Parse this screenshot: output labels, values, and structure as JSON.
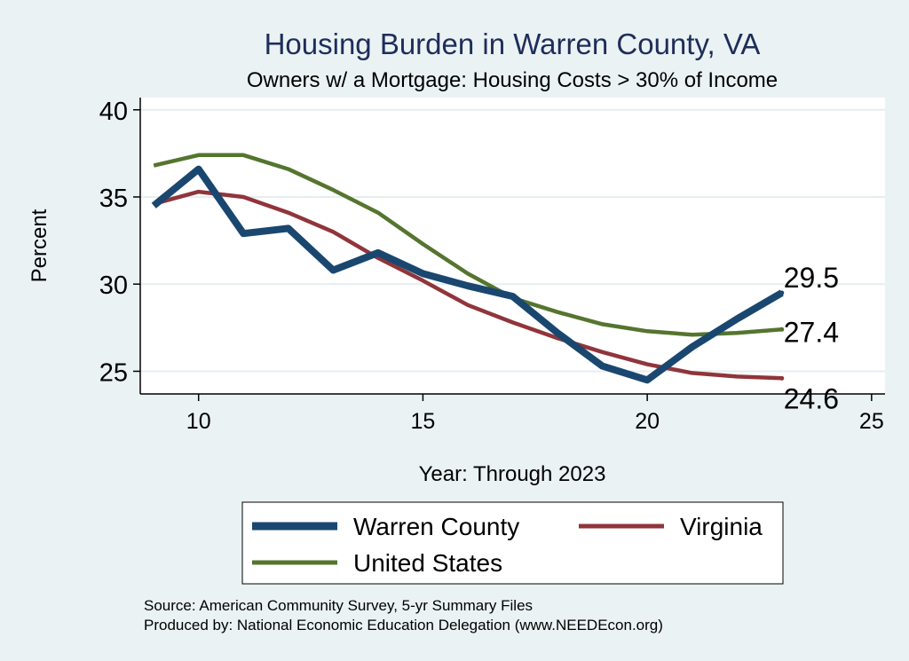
{
  "chart_data": {
    "type": "line",
    "title": "Housing Burden in Warren County, VA",
    "subtitle": "Owners w/ a Mortgage: Housing Costs > 30% of Income",
    "xlabel": "Year: Through 2023",
    "ylabel": "Percent",
    "xlim": [
      8.7,
      25.3
    ],
    "ylim": [
      23.7,
      40.7
    ],
    "xticks": [
      10,
      15,
      20,
      25
    ],
    "yticks": [
      25,
      30,
      35,
      40
    ],
    "x": [
      9,
      10,
      11,
      12,
      13,
      14,
      15,
      16,
      17,
      18,
      19,
      20,
      21,
      22,
      23
    ],
    "series": [
      {
        "name": "Warren County",
        "color": "#1a476f",
        "values": [
          34.5,
          36.6,
          32.9,
          33.2,
          30.8,
          31.8,
          30.6,
          29.9,
          29.3,
          27.2,
          25.3,
          24.5,
          26.4,
          28.0,
          29.5
        ],
        "end_label": "29.5"
      },
      {
        "name": "Virginia",
        "color": "#90353b",
        "values": [
          34.6,
          35.3,
          35.0,
          34.1,
          33.0,
          31.5,
          30.2,
          28.8,
          27.8,
          26.9,
          26.1,
          25.4,
          24.9,
          24.7,
          24.6
        ],
        "end_label": "24.6"
      },
      {
        "name": "United States",
        "color": "#55752f",
        "values": [
          36.8,
          37.4,
          37.4,
          36.6,
          35.4,
          34.1,
          32.3,
          30.6,
          29.2,
          28.4,
          27.7,
          27.3,
          27.1,
          27.2,
          27.4
        ],
        "end_label": "27.4"
      }
    ],
    "legend": {
      "position": "bottom",
      "order": [
        "Warren County",
        "Virginia",
        "United States"
      ]
    },
    "notes": [
      "Source: American Community Survey, 5-yr Summary Files",
      "Produced by: National Economic Education Delegation (www.NEEDEcon.org)"
    ],
    "grid": true
  }
}
